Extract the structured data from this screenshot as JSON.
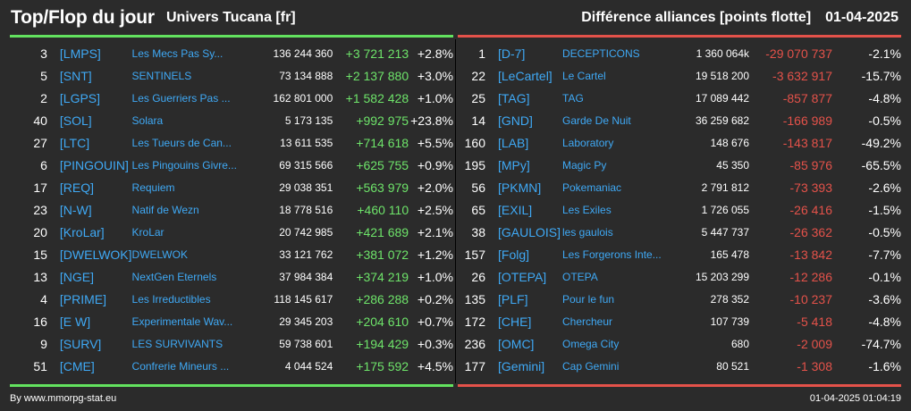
{
  "header": {
    "title": "Top/Flop du jour",
    "universe": "Univers Tucana [fr]",
    "metric": "Différence alliances [points flotte]",
    "date": "01-04-2025"
  },
  "colors": {
    "top": "#63e25f",
    "flop": "#e4524a",
    "link": "#3fa9f5",
    "background": "#2b2b2b"
  },
  "top": [
    {
      "rank": "3",
      "tag": "[LMPS]",
      "name": "Les Mecs Pas Sy...",
      "points": "136 244 360",
      "diff": "+3 721 213",
      "pct": "+2.8%"
    },
    {
      "rank": "5",
      "tag": "[SNT]",
      "name": "SENTINELS",
      "points": "73 134 888",
      "diff": "+2 137 880",
      "pct": "+3.0%"
    },
    {
      "rank": "2",
      "tag": "[LGPS]",
      "name": "Les Guerriers Pas ...",
      "points": "162 801 000",
      "diff": "+1 582 428",
      "pct": "+1.0%"
    },
    {
      "rank": "40",
      "tag": "[SOL]",
      "name": "Solara",
      "points": "5 173 135",
      "diff": "+992 975",
      "pct": "+23.8%"
    },
    {
      "rank": "27",
      "tag": "[LTC]",
      "name": "Les Tueurs de Can...",
      "points": "13 611 535",
      "diff": "+714 618",
      "pct": "+5.5%"
    },
    {
      "rank": "6",
      "tag": "[PINGOUIN]",
      "name": "Les Pingouins Givre...",
      "points": "69 315 566",
      "diff": "+625 755",
      "pct": "+0.9%"
    },
    {
      "rank": "17",
      "tag": "[REQ]",
      "name": "Requiem",
      "points": "29 038 351",
      "diff": "+563 979",
      "pct": "+2.0%"
    },
    {
      "rank": "23",
      "tag": "[N-W]",
      "name": "Natif de Wezn",
      "points": "18 778 516",
      "diff": "+460 110",
      "pct": "+2.5%"
    },
    {
      "rank": "20",
      "tag": "[KroLar]",
      "name": "KroLar",
      "points": "20 742 985",
      "diff": "+421 689",
      "pct": "+2.1%"
    },
    {
      "rank": "15",
      "tag": "[DWELWOK]",
      "name": "DWELWOK",
      "points": "33 121 762",
      "diff": "+381 072",
      "pct": "+1.2%"
    },
    {
      "rank": "13",
      "tag": "[NGE]",
      "name": "NextGen Eternels",
      "points": "37 984 384",
      "diff": "+374 219",
      "pct": "+1.0%"
    },
    {
      "rank": "4",
      "tag": "[PRIME]",
      "name": "Les Irreductibles",
      "points": "118 145 617",
      "diff": "+286 288",
      "pct": "+0.2%"
    },
    {
      "rank": "16",
      "tag": "[E W]",
      "name": "Experimentale Wav...",
      "points": "29 345 203",
      "diff": "+204 610",
      "pct": "+0.7%"
    },
    {
      "rank": "9",
      "tag": "[SURV]",
      "name": "LES SURVIVANTS",
      "points": "59 738 601",
      "diff": "+194 429",
      "pct": "+0.3%"
    },
    {
      "rank": "51",
      "tag": "[CME]",
      "name": "Confrerie Mineurs ...",
      "points": "4 044 524",
      "diff": "+175 592",
      "pct": "+4.5%"
    }
  ],
  "flop": [
    {
      "rank": "1",
      "tag": "[D-7]",
      "name": "DECEPTICONS",
      "points": "1 360 064k",
      "diff": "-29 070 737",
      "pct": "-2.1%"
    },
    {
      "rank": "22",
      "tag": "[LeCartel]",
      "name": "Le Cartel",
      "points": "19 518 200",
      "diff": "-3 632 917",
      "pct": "-15.7%"
    },
    {
      "rank": "25",
      "tag": "[TAG]",
      "name": "TAG",
      "points": "17 089 442",
      "diff": "-857 877",
      "pct": "-4.8%"
    },
    {
      "rank": "14",
      "tag": "[GND]",
      "name": "Garde De Nuit",
      "points": "36 259 682",
      "diff": "-166 989",
      "pct": "-0.5%"
    },
    {
      "rank": "160",
      "tag": "[LAB]",
      "name": "Laboratory",
      "points": "148 676",
      "diff": "-143 817",
      "pct": "-49.2%"
    },
    {
      "rank": "195",
      "tag": "[MPy]",
      "name": "Magic Py",
      "points": "45 350",
      "diff": "-85 976",
      "pct": "-65.5%"
    },
    {
      "rank": "56",
      "tag": "[PKMN]",
      "name": "Pokemaniac",
      "points": "2 791 812",
      "diff": "-73 393",
      "pct": "-2.6%"
    },
    {
      "rank": "65",
      "tag": "[EXIL]",
      "name": "Les Exiles",
      "points": "1 726 055",
      "diff": "-26 416",
      "pct": "-1.5%"
    },
    {
      "rank": "38",
      "tag": "[GAULOIS]",
      "name": "les gaulois",
      "points": "5 447 737",
      "diff": "-26 362",
      "pct": "-0.5%"
    },
    {
      "rank": "157",
      "tag": "[Folg]",
      "name": "Les Forgerons Inte...",
      "points": "165 478",
      "diff": "-13 842",
      "pct": "-7.7%"
    },
    {
      "rank": "26",
      "tag": "[OTEPA]",
      "name": "OTEPA",
      "points": "15 203 299",
      "diff": "-12 286",
      "pct": "-0.1%"
    },
    {
      "rank": "135",
      "tag": "[PLF]",
      "name": "Pour le fun",
      "points": "278 352",
      "diff": "-10 237",
      "pct": "-3.6%"
    },
    {
      "rank": "172",
      "tag": "[CHE]",
      "name": "Chercheur",
      "points": "107 739",
      "diff": "-5 418",
      "pct": "-4.8%"
    },
    {
      "rank": "236",
      "tag": "[OMC]",
      "name": "Omega City",
      "points": "680",
      "diff": "-2 009",
      "pct": "-74.7%"
    },
    {
      "rank": "177",
      "tag": "[Gemini]",
      "name": "Cap Gemini",
      "points": "80 521",
      "diff": "-1 308",
      "pct": "-1.6%"
    }
  ],
  "footer": {
    "source": "By www.mmorpg-stat.eu",
    "timestamp": "01-04-2025 01:04:19"
  }
}
